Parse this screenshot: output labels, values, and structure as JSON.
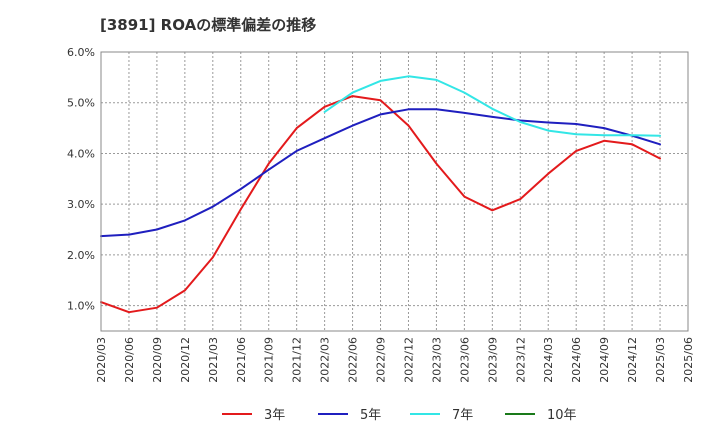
{
  "chart_data": {
    "type": "line",
    "title": "[3891]  ROAの標準偏差の推移",
    "x": [
      "2020/03",
      "2020/06",
      "2020/09",
      "2020/12",
      "2021/03",
      "2021/06",
      "2021/09",
      "2021/12",
      "2022/03",
      "2022/06",
      "2022/09",
      "2022/12",
      "2023/03",
      "2023/06",
      "2023/09",
      "2023/12",
      "2024/03",
      "2024/06",
      "2024/09",
      "2024/12",
      "2025/03",
      "2025/06"
    ],
    "ylim": [
      0.5,
      6.0
    ],
    "yticks": [
      "1.0%",
      "2.0%",
      "3.0%",
      "4.0%",
      "5.0%",
      "6.0%"
    ],
    "ytick_values": [
      1.0,
      2.0,
      3.0,
      4.0,
      5.0,
      6.0
    ],
    "grid": true,
    "legend_position": "bottom",
    "series": [
      {
        "name": "3年",
        "color": "#e31a1c",
        "values": [
          1.07,
          0.87,
          0.96,
          1.3,
          1.95,
          2.9,
          3.8,
          4.5,
          4.92,
          5.13,
          5.05,
          4.55,
          3.8,
          3.15,
          2.88,
          3.1,
          3.6,
          4.05,
          4.25,
          4.18,
          3.9,
          null
        ]
      },
      {
        "name": "5年",
        "color": "#1f1fbf",
        "values": [
          2.37,
          2.4,
          2.5,
          2.68,
          2.95,
          3.3,
          3.68,
          4.05,
          4.3,
          4.55,
          4.77,
          4.87,
          4.87,
          4.8,
          4.72,
          4.65,
          4.61,
          4.58,
          4.5,
          4.35,
          4.18,
          null
        ]
      },
      {
        "name": "7年",
        "color": "#33e6e6",
        "values": [
          null,
          null,
          null,
          null,
          null,
          null,
          null,
          null,
          4.82,
          5.2,
          5.43,
          5.52,
          5.45,
          5.2,
          4.88,
          4.62,
          4.45,
          4.38,
          4.36,
          4.36,
          4.35,
          null
        ]
      },
      {
        "name": "10年",
        "color": "#1a7a1a",
        "values": [
          null,
          null,
          null,
          null,
          null,
          null,
          null,
          null,
          null,
          null,
          null,
          null,
          null,
          null,
          null,
          null,
          null,
          null,
          null,
          null,
          null,
          null
        ]
      }
    ]
  }
}
